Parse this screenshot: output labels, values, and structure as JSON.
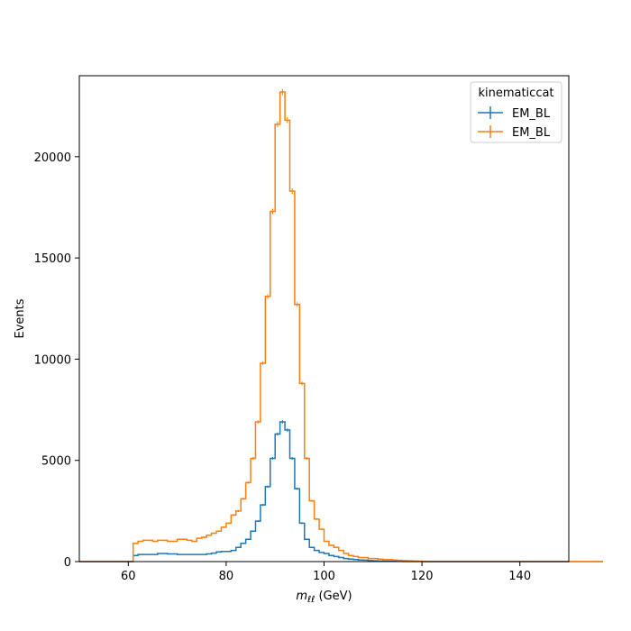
{
  "chart_data": {
    "type": "step-histogram",
    "xlabel": "m_ll (GeV)",
    "xlabel_parts": {
      "symbol": "m",
      "subscript": "ℓℓ",
      "unit": " (GeV)"
    },
    "ylabel": "Events",
    "xlim": [
      50,
      150
    ],
    "ylim": [
      0,
      24000
    ],
    "x_ticks": [
      60,
      80,
      100,
      120,
      140
    ],
    "y_ticks": [
      0,
      5000,
      10000,
      15000,
      20000
    ],
    "bin_edges_start": 50,
    "bin_width": 1,
    "legend": {
      "title": "kinematiccat",
      "placement": "top-right"
    },
    "series": [
      {
        "name": "EM_BL",
        "color": "#1f77b4",
        "values": [
          0,
          0,
          0,
          0,
          0,
          0,
          0,
          0,
          0,
          0,
          0,
          300,
          350,
          350,
          350,
          350,
          400,
          400,
          380,
          380,
          350,
          350,
          350,
          350,
          350,
          350,
          380,
          420,
          480,
          500,
          500,
          550,
          700,
          900,
          1100,
          1500,
          2000,
          2800,
          3700,
          5100,
          6300,
          6900,
          6500,
          5100,
          3600,
          1900,
          1100,
          700,
          550,
          450,
          400,
          300,
          250,
          200,
          150,
          120,
          100,
          80,
          70,
          50,
          40,
          30,
          25,
          20,
          15,
          10,
          8,
          5,
          4,
          3,
          2,
          0,
          0,
          0,
          0,
          0,
          0,
          0,
          0,
          0,
          0,
          0,
          0,
          0,
          0,
          0,
          0,
          0,
          0,
          0,
          0,
          0,
          0,
          0,
          0,
          0,
          0,
          0,
          0,
          0,
          0,
          0,
          0,
          0,
          0,
          0,
          0
        ]
      },
      {
        "name": "EM_BL",
        "color": "#ff7f0e",
        "values": [
          0,
          0,
          0,
          0,
          0,
          0,
          0,
          0,
          0,
          0,
          0,
          900,
          1000,
          1050,
          1050,
          1000,
          1050,
          1050,
          1000,
          1000,
          1100,
          1100,
          1050,
          1000,
          1150,
          1200,
          1300,
          1400,
          1500,
          1700,
          1900,
          2300,
          2500,
          3100,
          3900,
          5100,
          6900,
          9800,
          13100,
          17300,
          21600,
          23200,
          21800,
          18300,
          12700,
          8800,
          5100,
          3000,
          2100,
          1600,
          1000,
          800,
          700,
          550,
          400,
          300,
          250,
          200,
          200,
          150,
          150,
          120,
          100,
          100,
          80,
          60,
          50,
          40,
          30,
          20,
          10,
          0,
          0,
          0,
          0,
          0,
          0,
          0,
          0,
          0,
          0,
          0,
          0,
          0,
          0,
          0,
          0,
          0,
          0,
          0,
          0,
          0,
          0,
          0,
          0,
          0,
          0,
          0,
          0,
          0,
          0,
          0,
          0,
          0,
          0,
          0,
          0
        ]
      }
    ]
  }
}
